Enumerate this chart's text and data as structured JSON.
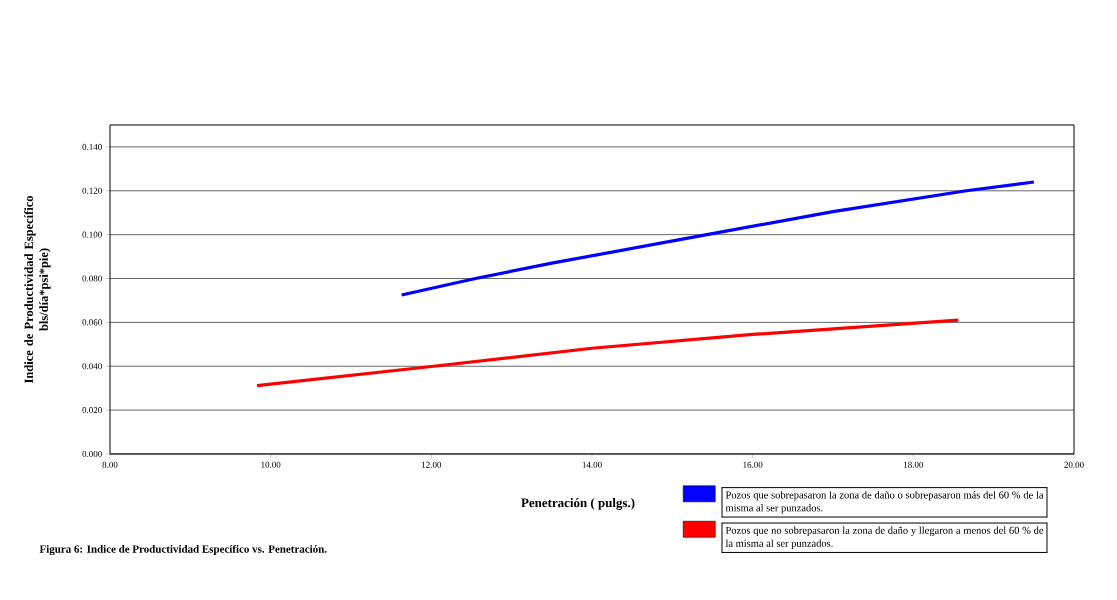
{
  "chart_data": {
    "type": "line",
    "ylabel": "Indice de Productividad Específico\nbls/día*psi*pie)",
    "xlabel": "Penetración ( pulgs.)",
    "annotations": [
      "Figura 6: Indice de Productividad Específico vs. Penetración."
    ],
    "series": [
      {
        "name": "Pozos que sobrepasaron la zona de daño o sobrepasaron más del 60 % de la misma al ser punzados.",
        "color": "#0000ff",
        "x": [
          11.63,
          12.55,
          13.5,
          15.43,
          17.0,
          18.66,
          19.5
        ],
        "values": [
          0.0725,
          0.08,
          0.087,
          0.1,
          0.1105,
          0.12,
          0.124
        ]
      },
      {
        "name": "Pozos que  no sobrepasaron la zona de daño y llegaron a menos del 60 % de la misma al ser punzados.",
        "color": "#ff0000",
        "x": [
          9.83,
          12.03,
          14.0,
          16.0,
          18.56
        ],
        "values": [
          0.0312,
          0.04,
          0.0482,
          0.0545,
          0.061
        ]
      }
    ],
    "xlim": [
      8,
      20
    ],
    "xticks": [
      {
        "value": 8,
        "label": "8.00"
      },
      {
        "value": 10,
        "label": "10.00"
      },
      {
        "value": 12,
        "label": "12.00"
      },
      {
        "value": 14,
        "label": "14.00"
      },
      {
        "value": 16,
        "label": "16.00"
      },
      {
        "value": 18,
        "label": "18.00"
      },
      {
        "value": 20,
        "label": "20.00"
      }
    ],
    "ylim": [
      0,
      0.15
    ],
    "yticks": [
      {
        "value": 0,
        "label": "0.000"
      },
      {
        "value": 0.02,
        "label": "0.020"
      },
      {
        "value": 0.04,
        "label": "0.040"
      },
      {
        "value": 0.06,
        "label": "0.060"
      },
      {
        "value": 0.08,
        "label": "0.080"
      },
      {
        "value": 0.1,
        "label": "0.100"
      },
      {
        "value": 0.12,
        "label": "0.120"
      },
      {
        "value": 0.14,
        "label": "0.140"
      }
    ],
    "grid": "y",
    "legend": "bottom right",
    "marker": "none",
    "line_style": "solid"
  }
}
